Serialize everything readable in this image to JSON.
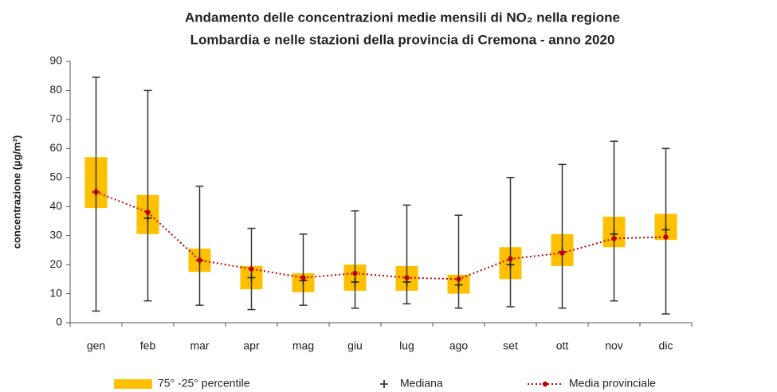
{
  "chart_data": {
    "type": "box",
    "title": [
      "Andamento delle concentrazioni medie mensili di NO₂ nella regione",
      "Lombardia e nelle stazioni della provincia di Cremona - anno 2020"
    ],
    "y_label": "concentrazione (µg/m³)",
    "categories": [
      "gen",
      "feb",
      "mar",
      "apr",
      "mag",
      "giu",
      "lug",
      "ago",
      "set",
      "ott",
      "nov",
      "dic"
    ],
    "whiskers": {
      "min": [
        4,
        7.5,
        6,
        4.5,
        6,
        5,
        6.5,
        5,
        5.5,
        5,
        7.5,
        3
      ],
      "max": [
        84.5,
        80,
        47,
        32.5,
        30.5,
        38.5,
        40.5,
        37,
        50,
        54.5,
        62.5,
        60
      ],
      "color": "#333333"
    },
    "series": [
      {
        "name": "75° -25° percentile",
        "color": "#ffc000",
        "q1": [
          39.5,
          30.5,
          17.5,
          11.5,
          10.5,
          11,
          11,
          10,
          15,
          19.5,
          26,
          28.5
        ],
        "q3": [
          57,
          44,
          25.5,
          19.5,
          17,
          20,
          19.5,
          16.5,
          26,
          30.5,
          36.5,
          37.5
        ]
      },
      {
        "name": "Mediana",
        "color": "#222222",
        "values": [
          45,
          36,
          21.5,
          15.5,
          14.5,
          14,
          14,
          13,
          20,
          24.5,
          30.5,
          32
        ]
      },
      {
        "name": "Media provinciale",
        "color": "#c00000",
        "values": [
          45,
          38,
          21.5,
          18.5,
          15.5,
          17,
          15.5,
          15,
          22,
          24,
          29,
          29.5
        ]
      }
    ],
    "ylim": [
      0,
      90
    ],
    "yticks": [
      0,
      10,
      20,
      30,
      40,
      50,
      60,
      70,
      80,
      90
    ]
  }
}
